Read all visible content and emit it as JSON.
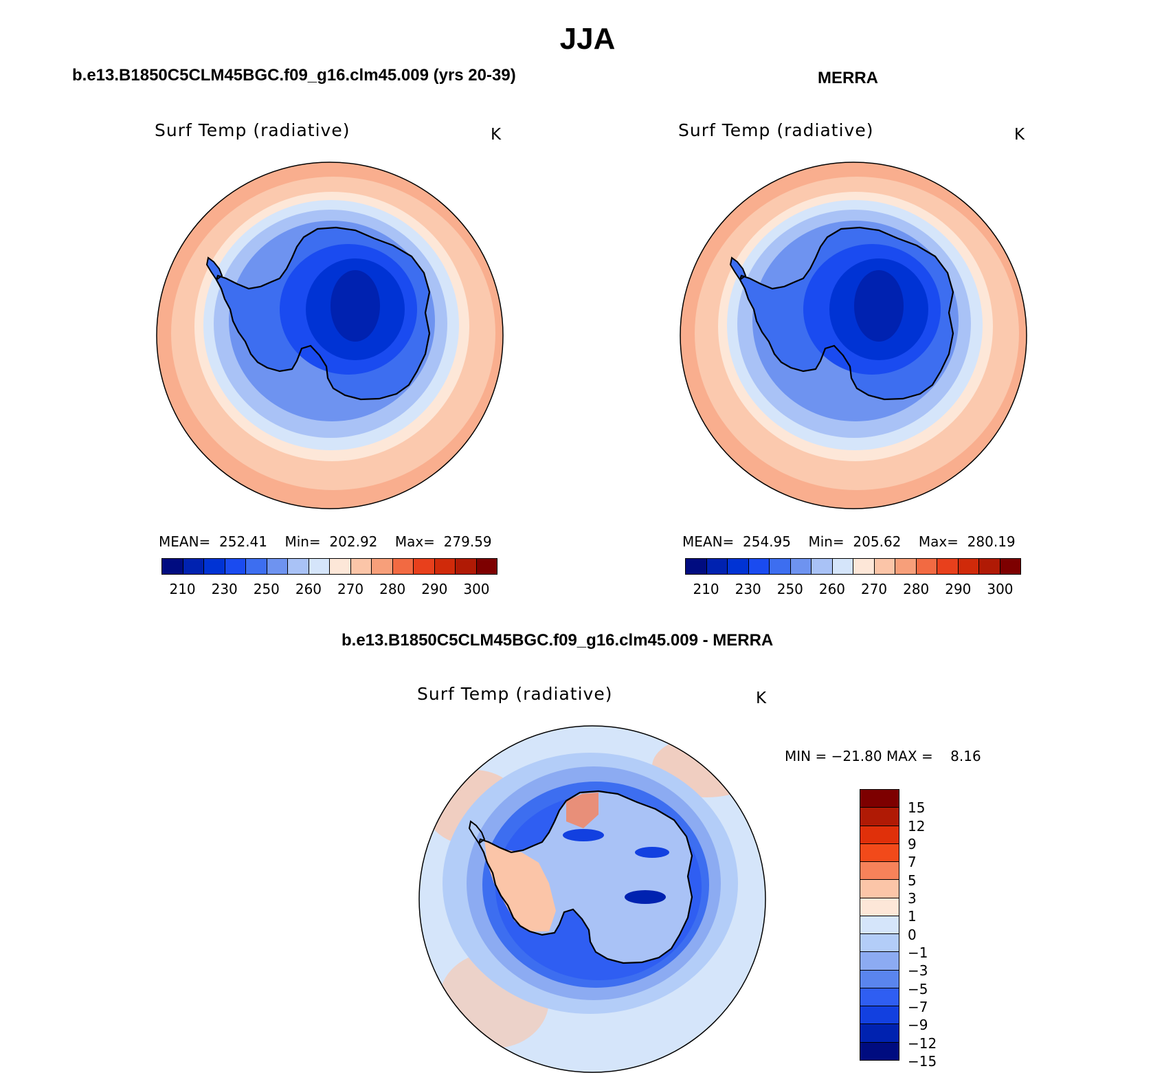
{
  "title": "JJA",
  "panels": [
    {
      "case": "b.e13.B1850C5CLM45BGC.f09_g16.clm45.009 (yrs 20-39)",
      "variable": "Surf Temp (radiative)",
      "units": "K",
      "stats": {
        "mean_label": "MEAN=",
        "mean": "252.41",
        "min_label": "Min=",
        "min": "202.92",
        "max_label": "Max=",
        "max": "279.59"
      }
    },
    {
      "case": "MERRA",
      "variable": "Surf Temp (radiative)",
      "units": "K",
      "stats": {
        "mean_label": "MEAN=",
        "mean": "254.95",
        "min_label": "Min=",
        "min": "205.62",
        "max_label": "Max=",
        "max": "280.19"
      }
    }
  ],
  "abs_colorbar": {
    "colors": [
      "#000c80",
      "#0022b0",
      "#0033d4",
      "#1a4bf0",
      "#3d6ef0",
      "#6e93f0",
      "#a9c2f6",
      "#d5e5fa",
      "#fde7d8",
      "#fbc5a8",
      "#f79f7a",
      "#f26a42",
      "#e8401c",
      "#d02a0a",
      "#b01a05",
      "#7d0000"
    ],
    "ticks": [
      "210",
      "230",
      "250",
      "260",
      "270",
      "280",
      "290",
      "300"
    ]
  },
  "diff_panel": {
    "case": "b.e13.B1850C5CLM45BGC.f09_g16.clm45.009 - MERRA",
    "variable": "Surf Temp (radiative)",
    "units": "K",
    "minmax": "MIN = −21.80 MAX =    8.16"
  },
  "diff_colorbar": {
    "colors": [
      "#7d0000",
      "#b01a05",
      "#e0300a",
      "#f24a1a",
      "#f7825a",
      "#fbc5a8",
      "#fde7d8",
      "#d5e5fa",
      "#b3cdf8",
      "#8cabf2",
      "#5a85ee",
      "#2f5ef2",
      "#1240e0",
      "#0022b0",
      "#000c80"
    ],
    "labels": [
      "15",
      "12",
      "9",
      "7",
      "5",
      "3",
      "1",
      "0",
      "−1",
      "−3",
      "−5",
      "−7",
      "−9",
      "−12",
      "−15"
    ]
  },
  "map_colors": {
    "ocean_far": "#f9ae8e",
    "ocean_mid": "#fbc9ae",
    "ocean_near": "#fde7d8",
    "ice_edge": "#d5e5fa",
    "ice_1": "#a9c2f6",
    "ice_2": "#6e93f0",
    "land_1": "#3d6ef0",
    "land_2": "#1a4bf0",
    "land_3": "#0033d4",
    "land_4": "#0022b0",
    "diff_bg": "#d5e5fa",
    "diff_blue": "#3d6ef0",
    "diff_warm": "#fbc5a8"
  }
}
